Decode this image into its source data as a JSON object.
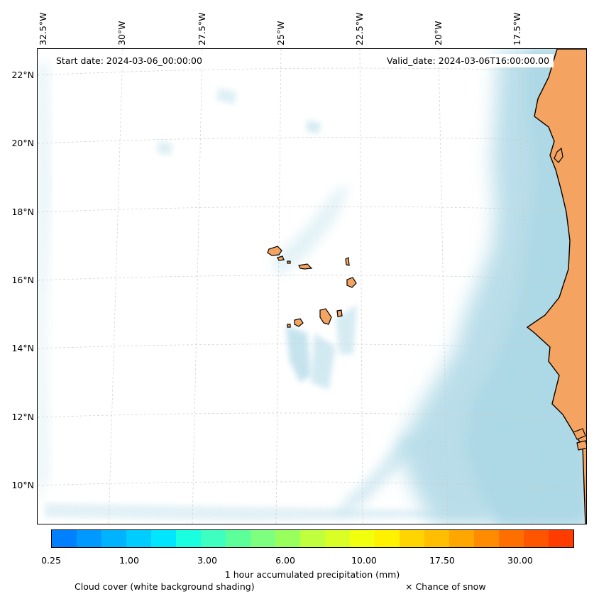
{
  "header": {
    "start_date": "Start date: 2024-03-06_00:00:00",
    "valid_date": "Valid_date: 2024-03-06T16:00:00.00"
  },
  "axes": {
    "longitude_labels": [
      "32.5°W",
      "30°W",
      "27.5°W",
      "25°W",
      "22.5°W",
      "20°W",
      "17.5°W"
    ],
    "latitude_labels": [
      "22°N",
      "20°N",
      "18°N",
      "16°N",
      "14°N",
      "12°N",
      "10°N"
    ]
  },
  "colors": {
    "land": "#f4a460",
    "ocean_cloud": "#add8e6",
    "coast": "#000000",
    "colorbar": [
      "#0080ff",
      "#0099ff",
      "#00b3ff",
      "#00ccff",
      "#00e6ff",
      "#19ffe0",
      "#3dffbf",
      "#5cff99",
      "#7fff7f",
      "#99ff5c",
      "#bfff3d",
      "#d9ff26",
      "#f2ff0d",
      "#fff200",
      "#ffd500",
      "#ffbf00",
      "#ffa600",
      "#ff8c00",
      "#ff6f00",
      "#ff5500",
      "#ff3c00"
    ]
  },
  "colorbar": {
    "ticks": [
      "0.25",
      "1.00",
      "3.00",
      "6.00",
      "10.00",
      "17.50",
      "30.00"
    ],
    "title": "1 hour accumulated precipitation (mm)"
  },
  "legend": {
    "cloud_cover": "Cloud cover (white background shading)",
    "snow": "× Chance of snow"
  }
}
